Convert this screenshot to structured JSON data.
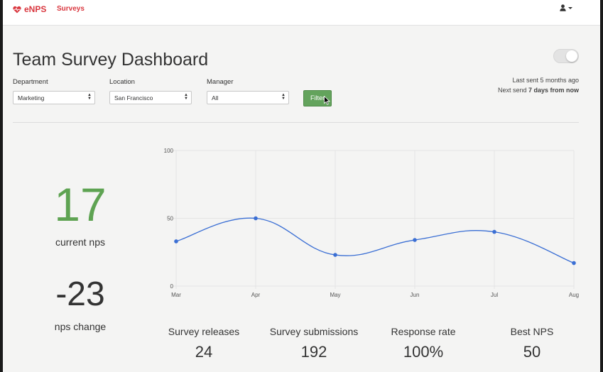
{
  "navbar": {
    "brand": "eNPS",
    "surveys_link": "Surveys",
    "user_icon": "user-icon"
  },
  "header": {
    "title": "Team Survey Dashboard",
    "last_sent": "Last sent 5 months ago",
    "next_send_prefix": "Next send ",
    "next_send_value": "7 days from now"
  },
  "filters": {
    "department": {
      "label": "Department",
      "value": "Marketing"
    },
    "location": {
      "label": "Location",
      "value": "San Francisco"
    },
    "manager": {
      "label": "Manager",
      "value": "All"
    },
    "button_label": "Filter"
  },
  "nps": {
    "current_value": "17",
    "current_label": "current nps",
    "change_value": "-23",
    "change_label": "nps change"
  },
  "stats": [
    {
      "label": "Survey releases",
      "value": "24"
    },
    {
      "label": "Survey submissions",
      "value": "192"
    },
    {
      "label": "Response rate",
      "value": "100%"
    },
    {
      "label": "Best NPS",
      "value": "50"
    }
  ],
  "colors": {
    "brand": "#d9363e",
    "accent_green": "#5ea352",
    "line": "#3b6fd4"
  },
  "chart_data": {
    "type": "line",
    "categories": [
      "Mar",
      "Apr",
      "May",
      "Jun",
      "Jul",
      "Aug"
    ],
    "series": [
      {
        "values": [
          33,
          50,
          23,
          34,
          40,
          17
        ]
      }
    ],
    "ylim": [
      0,
      100
    ],
    "yticks": [
      "0",
      "50",
      "100"
    ],
    "grid": true,
    "legend": "none"
  }
}
